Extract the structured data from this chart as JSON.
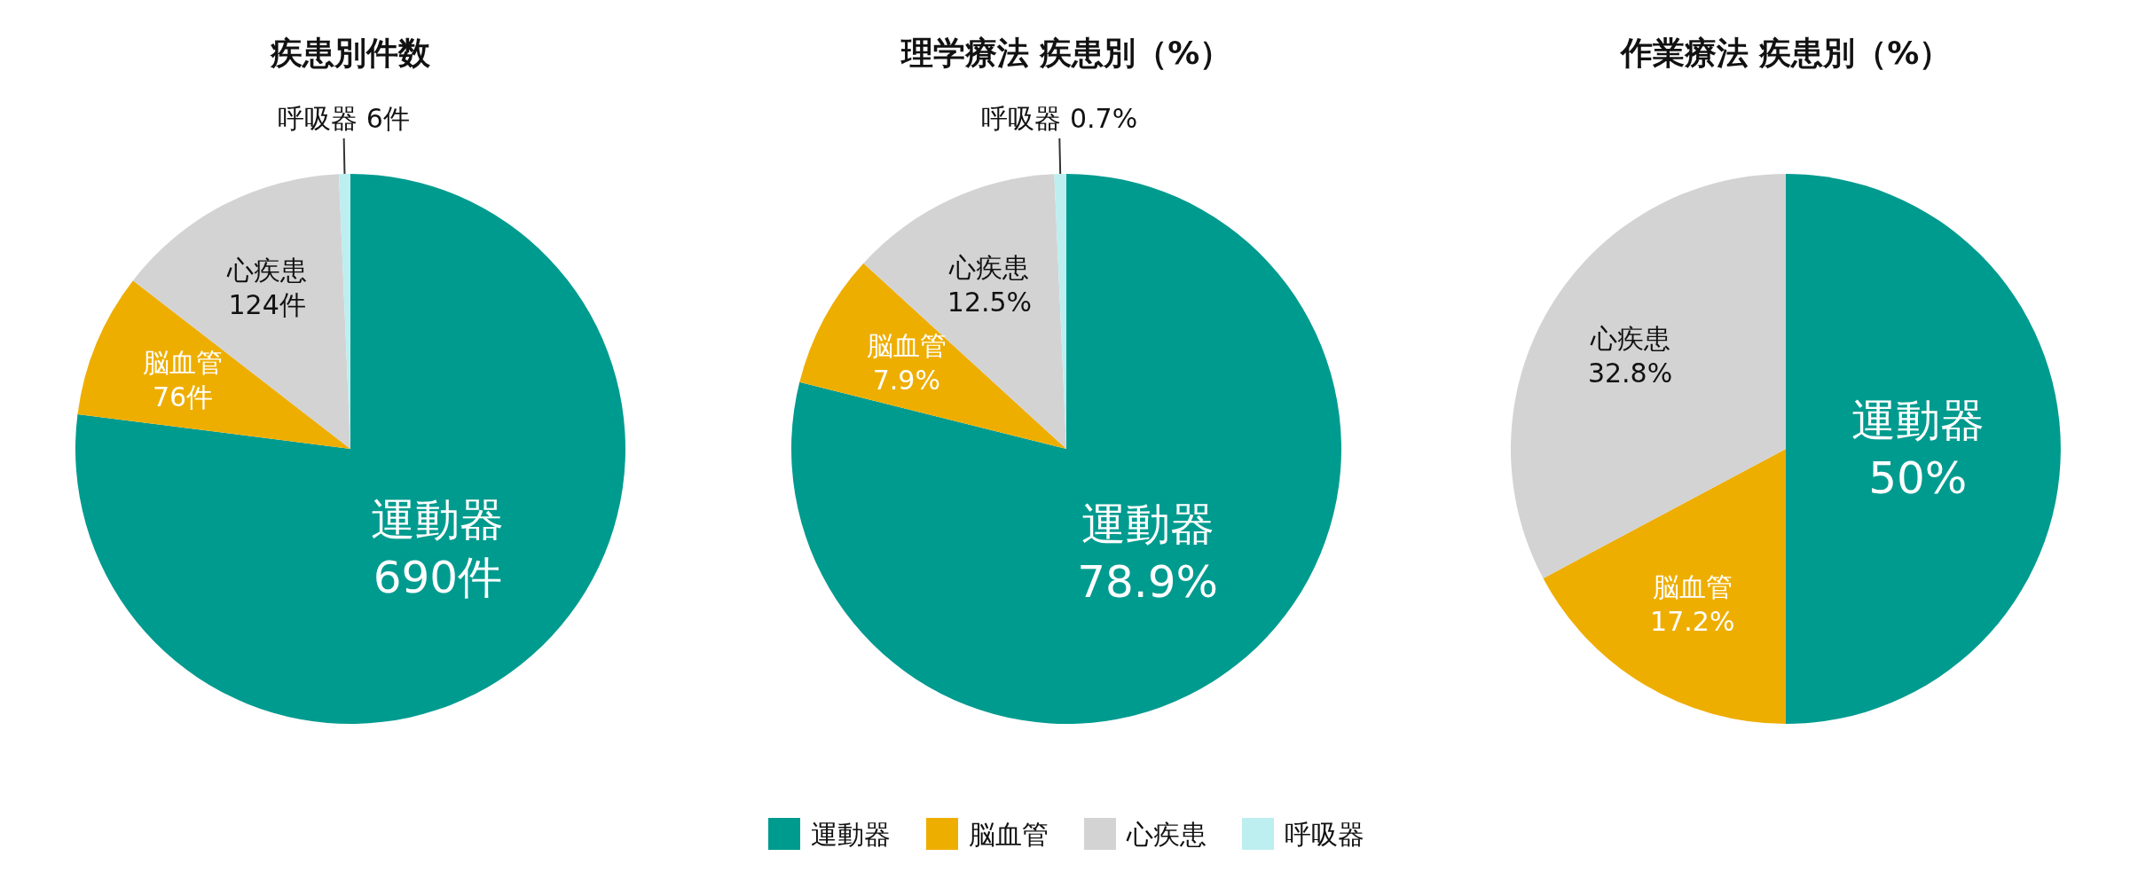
{
  "chart_data": [
    {
      "type": "pie",
      "title": "疾患別件数",
      "categories": [
        "運動器",
        "脳血管",
        "心疾患",
        "呼吸器"
      ],
      "values": [
        690,
        76,
        124,
        6
      ],
      "value_labels": [
        "690件",
        "76件",
        "124件",
        "6件"
      ],
      "colors": [
        "#009b8f",
        "#eeae00",
        "#d3d3d3",
        "#bdeef0"
      ]
    },
    {
      "type": "pie",
      "title": "理学療法 疾患別（%）",
      "categories": [
        "運動器",
        "脳血管",
        "心疾患",
        "呼吸器"
      ],
      "values": [
        78.9,
        7.9,
        12.5,
        0.7
      ],
      "value_labels": [
        "78.9%",
        "7.9%",
        "12.5%",
        "0.7%"
      ],
      "colors": [
        "#009b8f",
        "#eeae00",
        "#d3d3d3",
        "#bdeef0"
      ],
      "legend": "bottom"
    },
    {
      "type": "pie",
      "title": "作業療法 疾患別（%）",
      "categories": [
        "運動器",
        "脳血管",
        "心疾患"
      ],
      "values": [
        50,
        17.2,
        32.8
      ],
      "value_labels": [
        "50%",
        "17.2%",
        "32.8%"
      ],
      "colors": [
        "#009b8f",
        "#eeae00",
        "#d3d3d3"
      ]
    }
  ]
}
